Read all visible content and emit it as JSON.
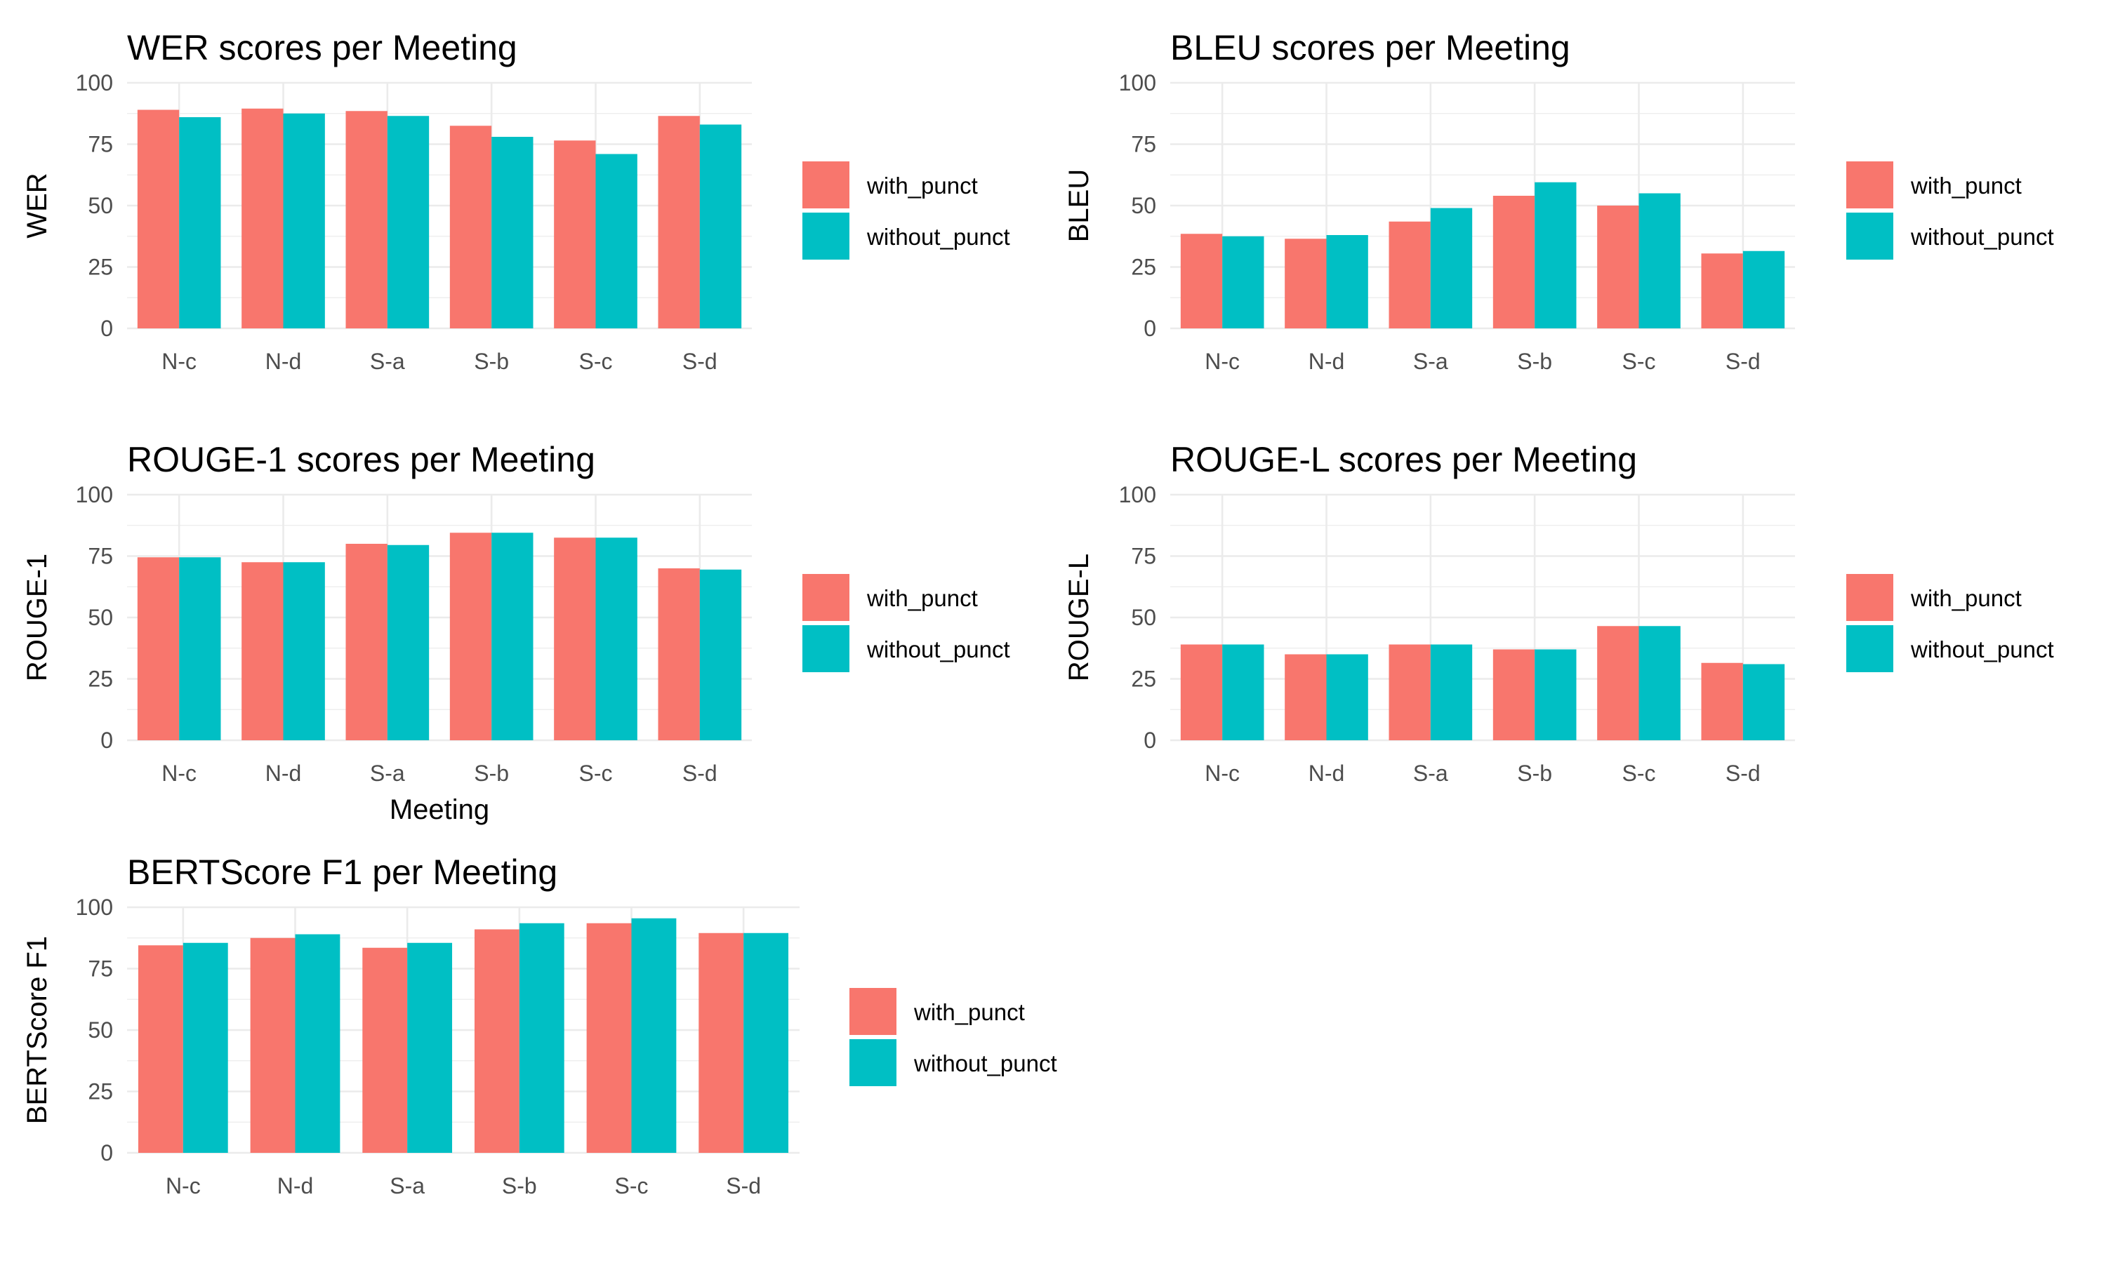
{
  "colors": {
    "with_punct": "#F8766D",
    "without_punct": "#00BFC4"
  },
  "legend": {
    "items": [
      {
        "key": "with_punct",
        "label": "with_punct"
      },
      {
        "key": "without_punct",
        "label": "without_punct"
      }
    ]
  },
  "chart_data": [
    {
      "type": "bar",
      "title": "WER scores per Meeting",
      "xlabel": "",
      "ylabel": "WER",
      "ylim": [
        0,
        100
      ],
      "yticks": [
        0,
        25,
        50,
        75,
        100
      ],
      "categories": [
        "N-c",
        "N-d",
        "S-a",
        "S-b",
        "S-c",
        "S-d"
      ],
      "series": [
        {
          "name": "with_punct",
          "values": [
            89,
            89.5,
            88.5,
            82.5,
            76.5,
            86.5
          ]
        },
        {
          "name": "without_punct",
          "values": [
            86,
            87.5,
            86.5,
            78,
            71,
            83
          ]
        }
      ],
      "grid": true,
      "legend_position": "right"
    },
    {
      "type": "bar",
      "title": "BLEU scores per Meeting",
      "xlabel": "",
      "ylabel": "BLEU",
      "ylim": [
        0,
        100
      ],
      "yticks": [
        0,
        25,
        50,
        75,
        100
      ],
      "categories": [
        "N-c",
        "N-d",
        "S-a",
        "S-b",
        "S-c",
        "S-d"
      ],
      "series": [
        {
          "name": "with_punct",
          "values": [
            38.5,
            36.5,
            43.5,
            54,
            50,
            30.5
          ]
        },
        {
          "name": "without_punct",
          "values": [
            37.5,
            38,
            49,
            59.5,
            55,
            31.5
          ]
        }
      ],
      "grid": true,
      "legend_position": "right"
    },
    {
      "type": "bar",
      "title": "ROUGE-1 scores per Meeting",
      "xlabel": "Meeting",
      "ylabel": "ROUGE-1",
      "ylim": [
        0,
        100
      ],
      "yticks": [
        0,
        25,
        50,
        75,
        100
      ],
      "categories": [
        "N-c",
        "N-d",
        "S-a",
        "S-b",
        "S-c",
        "S-d"
      ],
      "series": [
        {
          "name": "with_punct",
          "values": [
            74.5,
            72.5,
            80,
            84.5,
            82.5,
            70
          ]
        },
        {
          "name": "without_punct",
          "values": [
            74.5,
            72.5,
            79.5,
            84.5,
            82.5,
            69.5
          ]
        }
      ],
      "grid": true,
      "legend_position": "right"
    },
    {
      "type": "bar",
      "title": "ROUGE-L scores per Meeting",
      "xlabel": "",
      "ylabel": "ROUGE-L",
      "ylim": [
        0,
        100
      ],
      "yticks": [
        0,
        25,
        50,
        75,
        100
      ],
      "categories": [
        "N-c",
        "N-d",
        "S-a",
        "S-b",
        "S-c",
        "S-d"
      ],
      "series": [
        {
          "name": "with_punct",
          "values": [
            39,
            35,
            39,
            37,
            46.5,
            31.5
          ]
        },
        {
          "name": "without_punct",
          "values": [
            39,
            35,
            39,
            37,
            46.5,
            31
          ]
        }
      ],
      "grid": true,
      "legend_position": "right"
    },
    {
      "type": "bar",
      "title": "BERTScore F1 per Meeting",
      "xlabel": "",
      "ylabel": "BERTScore F1",
      "ylim": [
        0,
        100
      ],
      "yticks": [
        0,
        25,
        50,
        75,
        100
      ],
      "categories": [
        "N-c",
        "N-d",
        "S-a",
        "S-b",
        "S-c",
        "S-d"
      ],
      "series": [
        {
          "name": "with_punct",
          "values": [
            84.5,
            87.5,
            83.5,
            91,
            93.5,
            89.5
          ]
        },
        {
          "name": "without_punct",
          "values": [
            85.5,
            89,
            85.5,
            93.5,
            95.5,
            89.5
          ]
        }
      ],
      "grid": true,
      "legend_position": "right"
    }
  ]
}
